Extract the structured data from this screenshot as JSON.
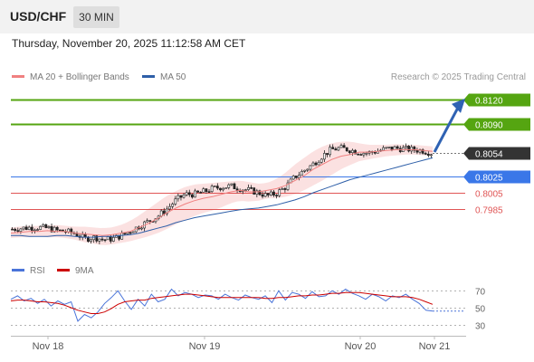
{
  "header": {
    "symbol": "USD/CHF",
    "timeframe": "30 MIN"
  },
  "timestamp": "Thursday, November 20, 2025 11:12:58 AM CET",
  "legend": {
    "ma20": {
      "label": "MA 20 + Bollinger Bands",
      "color": "#f08080"
    },
    "ma50": {
      "label": "MA 50",
      "color": "#2e5fa8"
    }
  },
  "copyright": "Research © 2025 Trading Central",
  "indicator_legend": {
    "rsi": {
      "label": "RSI",
      "color": "#4a74d9"
    },
    "ma9": {
      "label": "9MA",
      "color": "#cc0000"
    }
  },
  "colors": {
    "up": "#ffffff",
    "down": "#222222",
    "target": "#55a511",
    "pivot": "#3a77e8",
    "support": "#e05555",
    "current": "#333333",
    "arrow": "#2f62b3"
  },
  "chart_data": [
    {
      "type": "candlestick",
      "title": "USD/CHF",
      "timeframe": "30 MIN",
      "x_ticks": [
        "Nov 18",
        "Nov 19",
        "Nov 20",
        "Nov 21"
      ],
      "ylim": [
        0.793,
        0.814
      ],
      "levels": [
        {
          "value": "0.8120",
          "kind": "target"
        },
        {
          "value": "0.8090",
          "kind": "target"
        },
        {
          "value": "0.8054",
          "kind": "current"
        },
        {
          "value": "0.8025",
          "kind": "pivot"
        },
        {
          "value": "0.8005",
          "kind": "support"
        },
        {
          "value": "0.7985",
          "kind": "support"
        }
      ],
      "projection": {
        "from": 0.8054,
        "to": 0.812
      },
      "ohlc_anchor_closes": [
        0.796,
        0.7961,
        0.7962,
        0.7962,
        0.7961,
        0.7958,
        0.7957,
        0.7954,
        0.7948,
        0.795,
        0.7947,
        0.7948,
        0.7952,
        0.7958,
        0.7964,
        0.797,
        0.7976,
        0.7985,
        0.7996,
        0.8003,
        0.8003,
        0.8006,
        0.801,
        0.8012,
        0.8013,
        0.801,
        0.8008,
        0.8005,
        0.8001,
        0.8004,
        0.8012,
        0.8024,
        0.8032,
        0.804,
        0.805,
        0.8058,
        0.806,
        0.8058,
        0.8055,
        0.8054,
        0.8056,
        0.8059,
        0.806,
        0.8059,
        0.8058,
        0.8057,
        0.8054
      ],
      "ma20": [
        0.7955,
        0.7956,
        0.7957,
        0.7957,
        0.7958,
        0.7957,
        0.7957,
        0.7955,
        0.7954,
        0.7953,
        0.7952,
        0.7953,
        0.7955,
        0.7957,
        0.7962,
        0.7967,
        0.7973,
        0.798,
        0.7986,
        0.7991,
        0.7995,
        0.7998,
        0.8,
        0.8003,
        0.8006,
        0.8008,
        0.8006,
        0.8006,
        0.8008,
        0.801,
        0.8014,
        0.802,
        0.8026,
        0.8034,
        0.804,
        0.8046,
        0.805,
        0.8052,
        0.8055,
        0.8055,
        0.8056,
        0.8057,
        0.8058,
        0.8058,
        0.8058,
        0.8057,
        0.8056
      ],
      "bb_upper": [
        0.7962,
        0.7963,
        0.7964,
        0.7964,
        0.7965,
        0.7965,
        0.7964,
        0.7963,
        0.7963,
        0.7962,
        0.7961,
        0.7962,
        0.7965,
        0.797,
        0.7977,
        0.7985,
        0.7993,
        0.8001,
        0.8007,
        0.8012,
        0.8015,
        0.8016,
        0.8017,
        0.8018,
        0.8019,
        0.802,
        0.8018,
        0.8016,
        0.8017,
        0.8022,
        0.803,
        0.804,
        0.8048,
        0.8056,
        0.8062,
        0.8066,
        0.8068,
        0.8068,
        0.8066,
        0.8064,
        0.8064,
        0.8064,
        0.8065,
        0.8064,
        0.8064,
        0.8063,
        0.8062
      ],
      "bb_lower": [
        0.7949,
        0.795,
        0.795,
        0.7951,
        0.795,
        0.795,
        0.7949,
        0.7947,
        0.7944,
        0.7942,
        0.794,
        0.7941,
        0.7943,
        0.7945,
        0.7948,
        0.7951,
        0.7955,
        0.796,
        0.7966,
        0.7971,
        0.7976,
        0.798,
        0.7983,
        0.7987,
        0.7992,
        0.7995,
        0.7994,
        0.7995,
        0.7998,
        0.7998,
        0.8,
        0.8003,
        0.8008,
        0.8014,
        0.802,
        0.8027,
        0.8034,
        0.8039,
        0.8044,
        0.8046,
        0.8048,
        0.805,
        0.8051,
        0.8052,
        0.8052,
        0.8051,
        0.805
      ],
      "ma50": [
        0.7952,
        0.7952,
        0.7951,
        0.7951,
        0.7951,
        0.7952,
        0.7952,
        0.7951,
        0.795,
        0.795,
        0.7951,
        0.7951,
        0.7952,
        0.7953,
        0.7955,
        0.7958,
        0.7961,
        0.7964,
        0.7968,
        0.7971,
        0.7974,
        0.7976,
        0.7978,
        0.798,
        0.7982,
        0.7984,
        0.7985,
        0.7986,
        0.7988,
        0.799,
        0.7993,
        0.7996,
        0.8,
        0.8005,
        0.8009,
        0.8013,
        0.8017,
        0.8021,
        0.8024,
        0.8027,
        0.803,
        0.8033,
        0.8036,
        0.8039,
        0.8042,
        0.8045,
        0.8048
      ]
    },
    {
      "type": "line",
      "title": "RSI",
      "ylim": [
        20,
        80
      ],
      "y_ticks": [
        "70",
        "50",
        "30"
      ],
      "series": [
        {
          "name": "RSI",
          "values": [
            60,
            64,
            58,
            61,
            55,
            60,
            52,
            58,
            54,
            57,
            34,
            42,
            38,
            45,
            55,
            62,
            70,
            58,
            48,
            60,
            52,
            66,
            57,
            60,
            72,
            64,
            68,
            66,
            62,
            65,
            64,
            60,
            66,
            62,
            59,
            65,
            62,
            60,
            64,
            56,
            70,
            59,
            68,
            66,
            61,
            69,
            63,
            64,
            70,
            66,
            72,
            67,
            64,
            60,
            66,
            63,
            58,
            64,
            62,
            66,
            60,
            55,
            47,
            46
          ]
        },
        {
          "name": "9MA",
          "values": [
            58,
            59,
            59,
            58,
            57,
            57,
            56,
            55,
            53,
            50,
            47,
            45,
            43,
            43,
            45,
            49,
            54,
            57,
            58,
            59,
            59,
            61,
            62,
            63,
            64,
            65,
            66,
            66,
            65,
            64,
            63,
            62,
            62,
            62,
            62,
            62,
            62,
            62,
            61,
            61,
            62,
            62,
            63,
            64,
            64,
            65,
            65,
            66,
            67,
            67,
            68,
            68,
            68,
            67,
            66,
            65,
            64,
            63,
            63,
            63,
            62,
            60,
            57,
            54
          ]
        }
      ]
    }
  ]
}
